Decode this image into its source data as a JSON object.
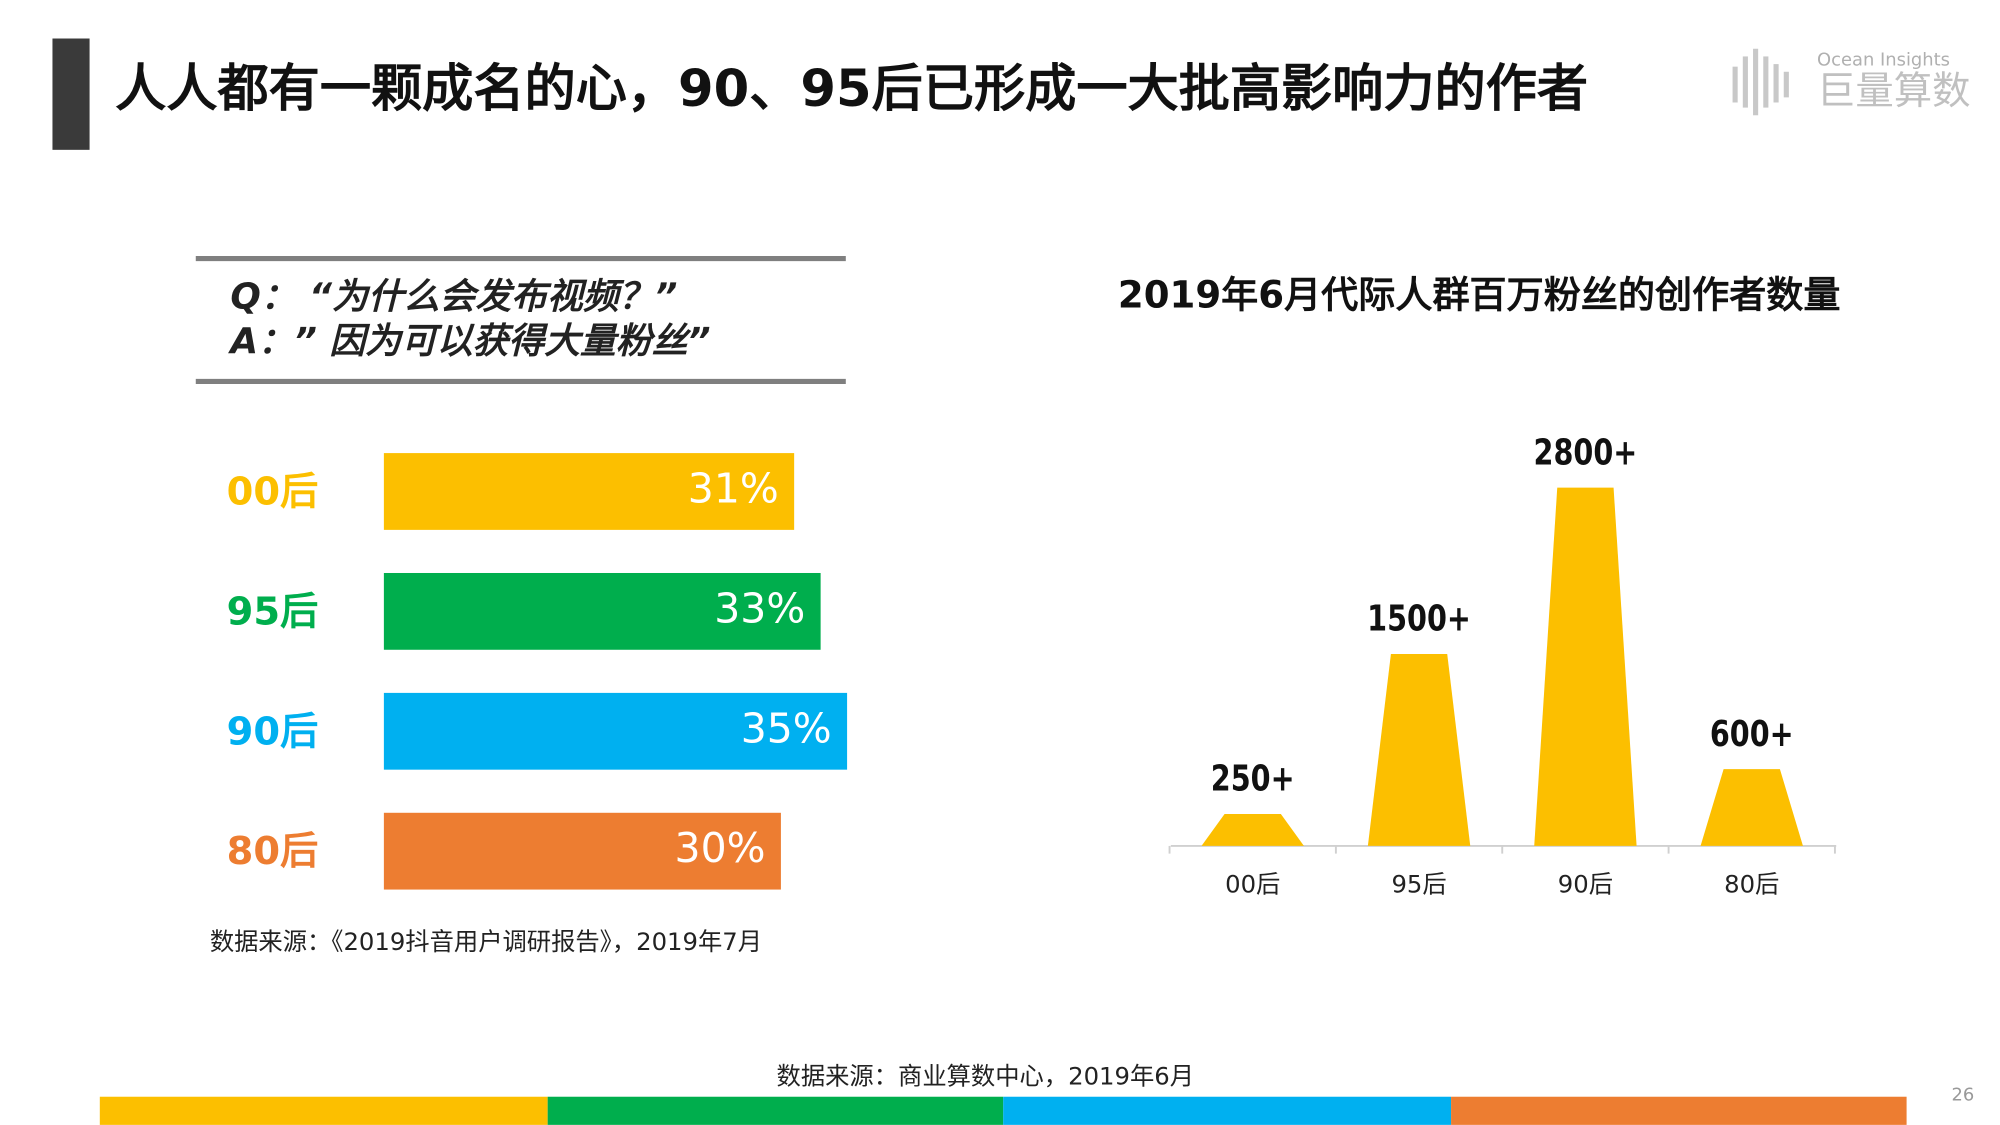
{
  "header": {
    "title": "人人都有一颗成名的心，90、95后已形成一大批高影响力的作者"
  },
  "logo": {
    "en": "Ocean Insights",
    "cn": "巨量算数"
  },
  "chart_data": [
    {
      "type": "hbar",
      "annotations": [
        "Q：  “为什么会发布视频？”",
        "A：” 因为可以获得大量粉丝”"
      ],
      "categories": [
        "00后",
        "95后",
        "90后",
        "80后"
      ],
      "values": [
        31,
        33,
        35,
        30
      ],
      "value_labels": [
        "31%",
        "33%",
        "35%",
        "30%"
      ],
      "colors": [
        "#fcbf00",
        "#00ae4d",
        "#00b0f0",
        "#ed7d31"
      ],
      "source": "数据来源：《2019抖音用户调研报告》，2019年7月"
    },
    {
      "type": "trapezoid",
      "title": "2019年6月代际人群百万粉丝的创作者数量",
      "categories": [
        "00后",
        "95后",
        "90后",
        "80后"
      ],
      "values": [
        250,
        1500,
        2800,
        600
      ],
      "value_labels": [
        "250+",
        "1500+",
        "2800+",
        "600+"
      ],
      "color": "#fcbf00"
    }
  ],
  "footer": {
    "source": "数据来源：商业算数中心，2019年6月",
    "page": "26"
  }
}
